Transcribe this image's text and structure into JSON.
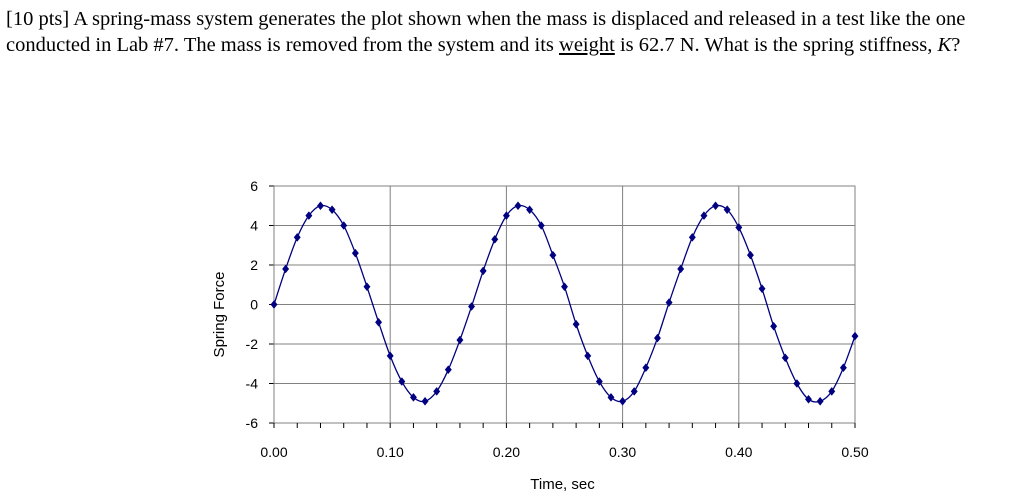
{
  "question": {
    "t1": "[10 pts] A spring-mass system generates the plot shown when the mass is displaced and released in a test like the one conducted in Lab #7. The mass is removed from the system and its ",
    "t2": "weight",
    "t3": " is 62.7 N. What is the spring stiffness, ",
    "t4": "K",
    "t5": "?"
  },
  "colors": {
    "series": "#000080",
    "grid": "#808080"
  },
  "chart_data": {
    "type": "line",
    "xlabel": "Time, sec",
    "ylabel": "Spring Force",
    "xlim": [
      0,
      0.5
    ],
    "ylim": [
      -6,
      6
    ],
    "x_ticks": [
      "0.00",
      "0.10",
      "0.20",
      "0.30",
      "0.40",
      "0.50"
    ],
    "y_ticks": [
      "6",
      "4",
      "2",
      "0",
      "-2",
      "-4",
      "-6"
    ],
    "grid": true,
    "marker": "diamond",
    "series": [
      {
        "x": [
          0.0,
          0.01,
          0.02,
          0.03,
          0.04,
          0.05,
          0.06,
          0.07,
          0.08,
          0.09,
          0.1,
          0.11,
          0.12,
          0.13,
          0.14,
          0.15,
          0.16,
          0.17,
          0.18,
          0.19,
          0.2,
          0.21,
          0.22,
          0.23,
          0.24,
          0.25,
          0.26,
          0.27,
          0.28,
          0.29,
          0.3,
          0.31,
          0.32,
          0.33,
          0.34,
          0.35,
          0.36,
          0.37,
          0.38,
          0.39,
          0.4,
          0.41,
          0.42,
          0.43,
          0.44,
          0.45,
          0.46,
          0.47,
          0.48,
          0.49,
          0.5
        ],
        "y": [
          0.0,
          1.8,
          3.4,
          4.5,
          5.0,
          4.8,
          4.0,
          2.6,
          0.9,
          -0.9,
          -2.6,
          -3.9,
          -4.7,
          -4.9,
          -4.4,
          -3.3,
          -1.8,
          -0.1,
          1.7,
          3.3,
          4.5,
          5.0,
          4.8,
          4.0,
          2.5,
          0.9,
          -1.0,
          -2.6,
          -3.9,
          -4.7,
          -4.9,
          -4.4,
          -3.2,
          -1.7,
          0.1,
          1.8,
          3.4,
          4.5,
          5.0,
          4.8,
          3.9,
          2.5,
          0.8,
          -1.1,
          -2.7,
          -4.0,
          -4.8,
          -4.9,
          -4.4,
          -3.2,
          -1.6
        ]
      }
    ]
  }
}
